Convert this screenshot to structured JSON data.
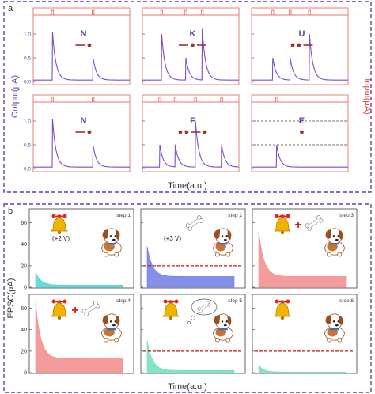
{
  "panel_a": {
    "label": "a",
    "ylabel_left": "Output(μA)",
    "ylabel_right": "Input(μA)",
    "xlabel": "Time(a.u.)",
    "y_ticks": [
      "0.0",
      "0.5",
      "1.0"
    ],
    "colors": {
      "border": "#6a3fa0",
      "output": "#7b4fc9",
      "input": "#e8736f",
      "code": "#a0322a",
      "text": "#6a3fa0",
      "input_label": "#d9423a"
    }
  },
  "panel_b": {
    "label": "b",
    "ylabel": "EPSC(μA)",
    "xlabel": "Time(a.u.)",
    "y_ticks": [
      "0",
      "20",
      "40",
      "60"
    ],
    "threshold_color": "#cc1111"
  },
  "chart_data": [
    {
      "type": "line",
      "letter": "N",
      "code": [
        "dash",
        "dot"
      ],
      "ylim": [
        0,
        1.25
      ],
      "input_pulses": [
        0.2,
        0.62
      ],
      "series": [
        {
          "peaks": [
            {
              "t": 0.2,
              "v": 1.05
            },
            {
              "t": 0.62,
              "v": 0.5
            }
          ]
        }
      ]
    },
    {
      "type": "line",
      "letter": "K",
      "code": [
        "dash",
        "dot",
        "dash"
      ],
      "ylim": [
        0,
        1.25
      ],
      "input_pulses": [
        0.2,
        0.45,
        0.62
      ],
      "series": [
        {
          "peaks": [
            {
              "t": 0.2,
              "v": 1.0
            },
            {
              "t": 0.45,
              "v": 0.5
            },
            {
              "t": 0.62,
              "v": 1.1
            }
          ]
        }
      ]
    },
    {
      "type": "line",
      "letter": "U",
      "code": [
        "dot",
        "dot",
        "dash"
      ],
      "ylim": [
        0,
        1.25
      ],
      "input_pulses": [
        0.22,
        0.4,
        0.6
      ],
      "series": [
        {
          "peaks": [
            {
              "t": 0.22,
              "v": 0.5
            },
            {
              "t": 0.4,
              "v": 0.5
            },
            {
              "t": 0.6,
              "v": 1.0
            }
          ]
        }
      ]
    },
    {
      "type": "line",
      "letter": "N",
      "code": [
        "dash",
        "dot"
      ],
      "ylim": [
        0,
        1.25
      ],
      "input_pulses": [
        0.2,
        0.62
      ],
      "series": [
        {
          "peaks": [
            {
              "t": 0.2,
              "v": 1.05
            },
            {
              "t": 0.62,
              "v": 0.5
            }
          ]
        }
      ]
    },
    {
      "type": "line",
      "letter": "F",
      "code": [
        "dot",
        "dot",
        "dash",
        "dot"
      ],
      "ylim": [
        0,
        1.25
      ],
      "input_pulses": [
        0.18,
        0.34,
        0.55,
        0.82
      ],
      "series": [
        {
          "peaks": [
            {
              "t": 0.18,
              "v": 0.5
            },
            {
              "t": 0.34,
              "v": 0.5
            },
            {
              "t": 0.55,
              "v": 1.0
            },
            {
              "t": 0.82,
              "v": 0.5
            }
          ]
        }
      ]
    },
    {
      "type": "line",
      "letter": "E",
      "code": [
        "dot"
      ],
      "ylim": [
        0,
        1.25
      ],
      "input_pulses": [
        0.26
      ],
      "thresholds": [
        1.0,
        0.5
      ],
      "series": [
        {
          "peaks": [
            {
              "t": 0.26,
              "v": 0.5
            }
          ]
        }
      ]
    },
    {
      "type": "area",
      "step": "step 1",
      "voltage": "(+2 V)",
      "icons": [
        "bell"
      ],
      "ylim": [
        0,
        70
      ],
      "peak": 14,
      "tail": 2,
      "color": "#48d6d6"
    },
    {
      "type": "area",
      "step": "step 2",
      "voltage": "(+3 V)",
      "icons": [
        "bone"
      ],
      "ylim": [
        0,
        70
      ],
      "peak": 38,
      "tail": 10,
      "threshold": 20,
      "color": "#6f7ae8"
    },
    {
      "type": "area",
      "step": "step 3",
      "icons": [
        "bell",
        "plus",
        "bone"
      ],
      "ylim": [
        0,
        70
      ],
      "peak": 52,
      "tail": 10,
      "color": "#f28b8b"
    },
    {
      "type": "area",
      "step": "step 4",
      "icons": [
        "bell",
        "plus",
        "bone"
      ],
      "ylim": [
        0,
        70
      ],
      "peak": 65,
      "tail": 13,
      "color": "#f28b8b"
    },
    {
      "type": "area",
      "step": "step 5",
      "icons": [
        "bell",
        "thought-bone"
      ],
      "ylim": [
        0,
        70
      ],
      "peak": 30,
      "tail": 2,
      "threshold": 20,
      "color": "#6fe0b8"
    },
    {
      "type": "area",
      "step": "step 6",
      "icons": [
        "bell"
      ],
      "ylim": [
        0,
        70
      ],
      "peak": 7,
      "tail": 0.5,
      "threshold": 20,
      "color": "#6fe0b8"
    }
  ]
}
